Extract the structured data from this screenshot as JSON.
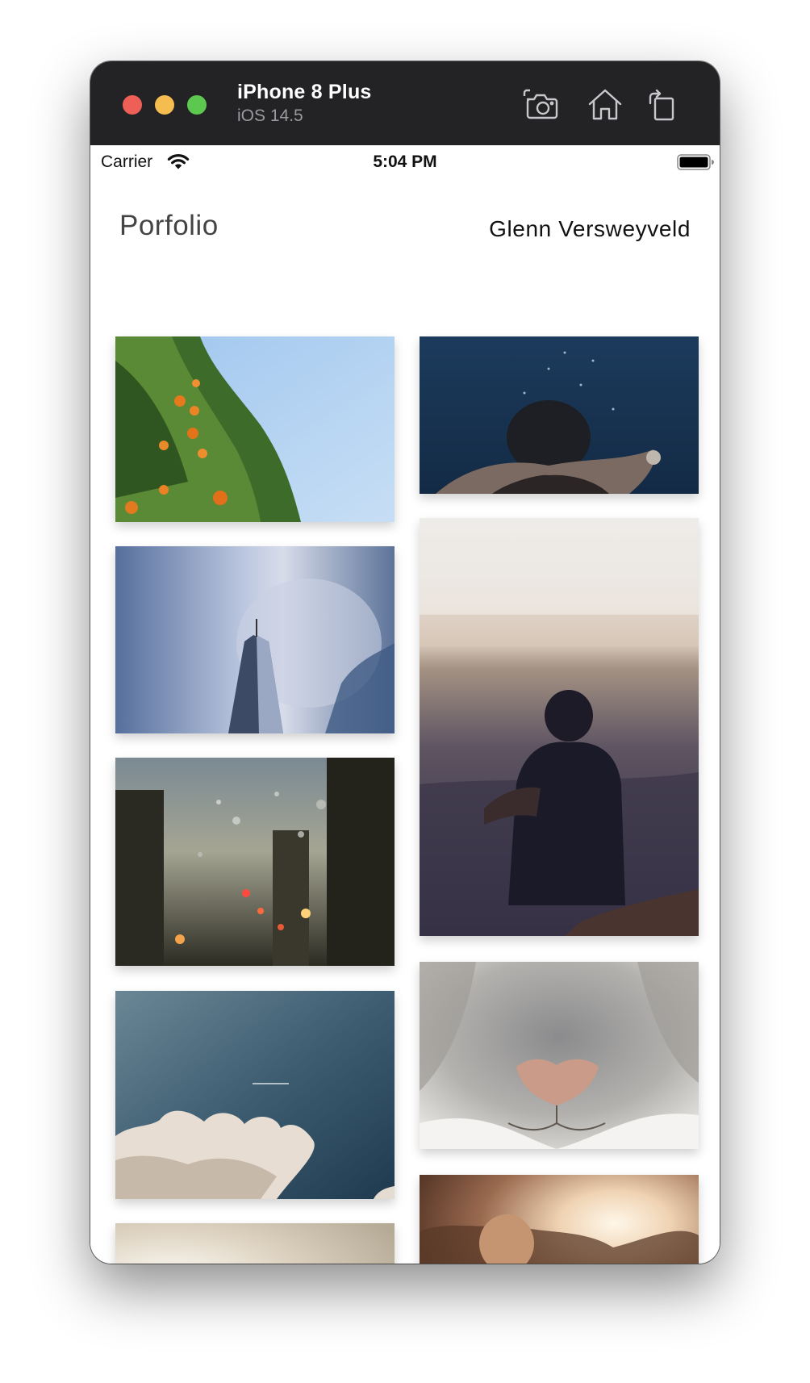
{
  "window": {
    "device_name": "iPhone 8 Plus",
    "os_version": "iOS 14.5",
    "toolbar": [
      {
        "name": "screenshot",
        "icon": "camera-icon"
      },
      {
        "name": "home",
        "icon": "home-icon"
      },
      {
        "name": "rotate",
        "icon": "rotate-icon"
      }
    ]
  },
  "status_bar": {
    "carrier": "Carrier",
    "time": "5:04 PM",
    "wifi_icon": "wifi-icon",
    "battery_icon": "battery-icon"
  },
  "header": {
    "brand": "Porfolio",
    "author": "Glenn Versweyveld"
  },
  "gallery": {
    "photos": [
      {
        "subject": "orange-tree"
      },
      {
        "subject": "underwater-swimmer"
      },
      {
        "subject": "skyscraper"
      },
      {
        "subject": "woman-overlooking-city"
      },
      {
        "subject": "rain-window"
      },
      {
        "subject": "cat-nose"
      },
      {
        "subject": "clouds"
      },
      {
        "subject": "woman-sunset"
      },
      {
        "subject": "hazy-sky-jets"
      }
    ]
  },
  "colors": {
    "titlebar": "#232326",
    "close": "#ee5f57",
    "minimize": "#f5bd4f",
    "zoom": "#5dc84f"
  }
}
